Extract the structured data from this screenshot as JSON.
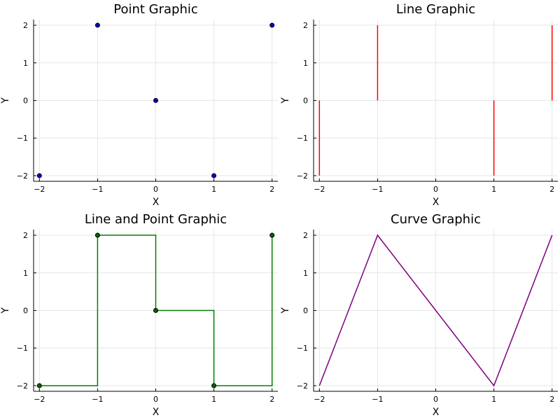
{
  "chart_data": [
    {
      "type": "scatter",
      "title": "Point Graphic",
      "xlabel": "X",
      "ylabel": "Y",
      "xlim": [
        -2.1,
        2.1
      ],
      "ylim": [
        -2.15,
        2.15
      ],
      "xticks": [
        -2,
        -1,
        0,
        1,
        2
      ],
      "yticks": [
        -2,
        -1,
        0,
        1,
        2
      ],
      "xtick_labels": [
        "−2",
        "−1",
        "0",
        "1",
        "2"
      ],
      "ytick_labels": [
        "−2",
        "−1",
        "0",
        "1",
        "2"
      ],
      "grid": true,
      "color": "#0000cc",
      "edge_color": "#000000",
      "series": [
        {
          "x": [
            -2,
            -1,
            0,
            1,
            2
          ],
          "y": [
            -2,
            2,
            0,
            -2,
            2
          ]
        }
      ]
    },
    {
      "type": "stem",
      "title": "Line Graphic",
      "xlabel": "X",
      "ylabel": "Y",
      "xlim": [
        -2.1,
        2.1
      ],
      "ylim": [
        -2.15,
        2.15
      ],
      "xticks": [
        -2,
        -1,
        0,
        1,
        2
      ],
      "yticks": [
        -2,
        -1,
        0,
        1,
        2
      ],
      "xtick_labels": [
        "−2",
        "−1",
        "0",
        "1",
        "2"
      ],
      "ytick_labels": [
        "−2",
        "−1",
        "0",
        "1",
        "2"
      ],
      "grid": true,
      "color": "#ff0000",
      "series": [
        {
          "x": [
            -2,
            -1,
            0,
            1,
            2
          ],
          "y": [
            -2,
            2,
            0,
            -2,
            2
          ]
        }
      ]
    },
    {
      "type": "line",
      "title": "Line and Point Graphic",
      "xlabel": "X",
      "ylabel": "Y",
      "xlim": [
        -2.1,
        2.1
      ],
      "ylim": [
        -2.15,
        2.15
      ],
      "xticks": [
        -2,
        -1,
        0,
        1,
        2
      ],
      "yticks": [
        -2,
        -1,
        0,
        1,
        2
      ],
      "xtick_labels": [
        "−2",
        "−1",
        "0",
        "1",
        "2"
      ],
      "ytick_labels": [
        "−2",
        "−1",
        "0",
        "1",
        "2"
      ],
      "grid": true,
      "color": "#008000",
      "marker_color": "#006400",
      "step": "post",
      "markers": true,
      "series": [
        {
          "x": [
            -2,
            -1,
            0,
            1,
            2
          ],
          "y": [
            -2,
            2,
            0,
            -2,
            2
          ]
        }
      ]
    },
    {
      "type": "line",
      "title": "Curve Graphic",
      "xlabel": "X",
      "ylabel": "Y",
      "xlim": [
        -2.1,
        2.1
      ],
      "ylim": [
        -2.15,
        2.15
      ],
      "xticks": [
        -2,
        -1,
        0,
        1,
        2
      ],
      "yticks": [
        -2,
        -1,
        0,
        1,
        2
      ],
      "xtick_labels": [
        "−2",
        "−1",
        "0",
        "1",
        "2"
      ],
      "ytick_labels": [
        "−2",
        "−1",
        "0",
        "1",
        "2"
      ],
      "grid": true,
      "color": "#800080",
      "series": [
        {
          "x": [
            -2,
            -1,
            0,
            1,
            2
          ],
          "y": [
            -2,
            2,
            0,
            -2,
            2
          ]
        }
      ]
    }
  ]
}
